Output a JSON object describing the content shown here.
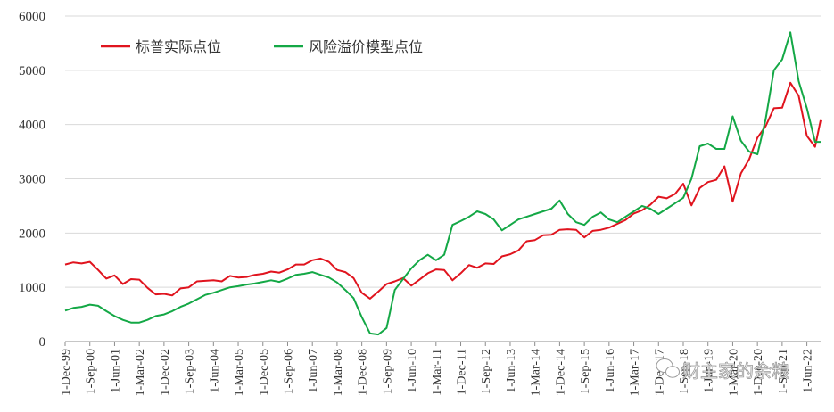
{
  "chart_data": {
    "type": "line",
    "title": "",
    "xlabel": "",
    "ylabel": "",
    "ylim": [
      0,
      6000
    ],
    "y_ticks": [
      0,
      1000,
      2000,
      3000,
      4000,
      5000,
      6000
    ],
    "grid": "horizontal",
    "legend_placement": "top-left",
    "x_tick_labels": [
      "1-Dec-99",
      "1-Sep-00",
      "1-Jun-01",
      "1-Mar-02",
      "1-Dec-02",
      "1-Sep-03",
      "1-Jun-04",
      "1-Mar-05",
      "1-Dec-05",
      "1-Sep-06",
      "1-Jun-07",
      "1-Mar-08",
      "1-Dec-08",
      "1-Sep-09",
      "1-Jun-10",
      "1-Mar-11",
      "1-Dec-11",
      "1-Sep-12",
      "1-Jun-13",
      "1-Mar-14",
      "1-Dec-14",
      "1-Sep-15",
      "1-Jun-16",
      "1-Mar-17",
      "1-Dec-17",
      "1-Sep-18",
      "1-Jun-19",
      "1-Mar-20",
      "1-Dec-20",
      "1-Sep-21",
      "1-Jun-22"
    ],
    "x_start": "1999-12",
    "x_end": "2022-11",
    "series": [
      {
        "name": "标普实际点位",
        "color": "#e0141e",
        "points": [
          [
            "1999-12",
            1420
          ],
          [
            "2000-03",
            1460
          ],
          [
            "2000-06",
            1440
          ],
          [
            "2000-09",
            1470
          ],
          [
            "2000-12",
            1320
          ],
          [
            "2001-03",
            1160
          ],
          [
            "2001-06",
            1220
          ],
          [
            "2001-09",
            1060
          ],
          [
            "2001-12",
            1150
          ],
          [
            "2002-03",
            1140
          ],
          [
            "2002-06",
            990
          ],
          [
            "2002-09",
            870
          ],
          [
            "2002-12",
            880
          ],
          [
            "2003-03",
            850
          ],
          [
            "2003-06",
            980
          ],
          [
            "2003-09",
            1000
          ],
          [
            "2003-12",
            1110
          ],
          [
            "2004-03",
            1120
          ],
          [
            "2004-06",
            1130
          ],
          [
            "2004-09",
            1110
          ],
          [
            "2004-12",
            1210
          ],
          [
            "2005-03",
            1180
          ],
          [
            "2005-06",
            1190
          ],
          [
            "2005-09",
            1230
          ],
          [
            "2005-12",
            1250
          ],
          [
            "2006-03",
            1290
          ],
          [
            "2006-06",
            1270
          ],
          [
            "2006-09",
            1330
          ],
          [
            "2006-12",
            1420
          ],
          [
            "2007-03",
            1420
          ],
          [
            "2007-06",
            1500
          ],
          [
            "2007-09",
            1530
          ],
          [
            "2007-12",
            1470
          ],
          [
            "2008-03",
            1320
          ],
          [
            "2008-06",
            1280
          ],
          [
            "2008-09",
            1170
          ],
          [
            "2008-12",
            900
          ],
          [
            "2009-03",
            790
          ],
          [
            "2009-06",
            920
          ],
          [
            "2009-09",
            1060
          ],
          [
            "2009-12",
            1110
          ],
          [
            "2010-03",
            1170
          ],
          [
            "2010-06",
            1030
          ],
          [
            "2010-09",
            1140
          ],
          [
            "2010-12",
            1260
          ],
          [
            "2011-03",
            1330
          ],
          [
            "2011-06",
            1320
          ],
          [
            "2011-09",
            1130
          ],
          [
            "2011-12",
            1260
          ],
          [
            "2012-03",
            1410
          ],
          [
            "2012-06",
            1360
          ],
          [
            "2012-09",
            1440
          ],
          [
            "2012-12",
            1430
          ],
          [
            "2013-03",
            1570
          ],
          [
            "2013-06",
            1610
          ],
          [
            "2013-09",
            1680
          ],
          [
            "2013-12",
            1850
          ],
          [
            "2014-03",
            1870
          ],
          [
            "2014-06",
            1960
          ],
          [
            "2014-09",
            1970
          ],
          [
            "2014-12",
            2060
          ],
          [
            "2015-03",
            2070
          ],
          [
            "2015-06",
            2060
          ],
          [
            "2015-09",
            1920
          ],
          [
            "2015-12",
            2040
          ],
          [
            "2016-03",
            2060
          ],
          [
            "2016-06",
            2100
          ],
          [
            "2016-09",
            2170
          ],
          [
            "2016-12",
            2240
          ],
          [
            "2017-03",
            2360
          ],
          [
            "2017-06",
            2420
          ],
          [
            "2017-09",
            2520
          ],
          [
            "2017-12",
            2670
          ],
          [
            "2018-03",
            2640
          ],
          [
            "2018-06",
            2720
          ],
          [
            "2018-09",
            2910
          ],
          [
            "2018-12",
            2510
          ],
          [
            "2019-03",
            2830
          ],
          [
            "2019-06",
            2940
          ],
          [
            "2019-09",
            2980
          ],
          [
            "2019-12",
            3230
          ],
          [
            "2020-03",
            2580
          ],
          [
            "2020-06",
            3100
          ],
          [
            "2020-09",
            3360
          ],
          [
            "2020-12",
            3760
          ],
          [
            "2021-03",
            3970
          ],
          [
            "2021-06",
            4300
          ],
          [
            "2021-09",
            4310
          ],
          [
            "2021-12",
            4770
          ],
          [
            "2022-03",
            4530
          ],
          [
            "2022-06",
            3790
          ],
          [
            "2022-09",
            3590
          ],
          [
            "2022-11",
            4080
          ]
        ]
      },
      {
        "name": "风险溢价模型点位",
        "color": "#14a846",
        "points": [
          [
            "1999-12",
            570
          ],
          [
            "2000-03",
            620
          ],
          [
            "2000-06",
            640
          ],
          [
            "2000-09",
            680
          ],
          [
            "2000-12",
            660
          ],
          [
            "2001-03",
            560
          ],
          [
            "2001-06",
            470
          ],
          [
            "2001-09",
            400
          ],
          [
            "2001-12",
            350
          ],
          [
            "2002-03",
            350
          ],
          [
            "2002-06",
            400
          ],
          [
            "2002-09",
            470
          ],
          [
            "2002-12",
            500
          ],
          [
            "2003-03",
            560
          ],
          [
            "2003-06",
            640
          ],
          [
            "2003-09",
            700
          ],
          [
            "2003-12",
            780
          ],
          [
            "2004-03",
            860
          ],
          [
            "2004-06",
            900
          ],
          [
            "2004-09",
            950
          ],
          [
            "2004-12",
            1000
          ],
          [
            "2005-03",
            1020
          ],
          [
            "2005-06",
            1050
          ],
          [
            "2005-09",
            1070
          ],
          [
            "2005-12",
            1100
          ],
          [
            "2006-03",
            1130
          ],
          [
            "2006-06",
            1100
          ],
          [
            "2006-09",
            1160
          ],
          [
            "2006-12",
            1230
          ],
          [
            "2007-03",
            1250
          ],
          [
            "2007-06",
            1280
          ],
          [
            "2007-09",
            1230
          ],
          [
            "2007-12",
            1180
          ],
          [
            "2008-03",
            1090
          ],
          [
            "2008-06",
            950
          ],
          [
            "2008-09",
            800
          ],
          [
            "2008-12",
            450
          ],
          [
            "2009-03",
            150
          ],
          [
            "2009-06",
            130
          ],
          [
            "2009-09",
            250
          ],
          [
            "2009-12",
            950
          ],
          [
            "2010-03",
            1150
          ],
          [
            "2010-06",
            1350
          ],
          [
            "2010-09",
            1500
          ],
          [
            "2010-12",
            1600
          ],
          [
            "2011-03",
            1500
          ],
          [
            "2011-06",
            1600
          ],
          [
            "2011-09",
            2150
          ],
          [
            "2011-12",
            2220
          ],
          [
            "2012-03",
            2300
          ],
          [
            "2012-06",
            2400
          ],
          [
            "2012-09",
            2350
          ],
          [
            "2012-12",
            2250
          ],
          [
            "2013-03",
            2050
          ],
          [
            "2013-06",
            2150
          ],
          [
            "2013-09",
            2250
          ],
          [
            "2013-12",
            2300
          ],
          [
            "2014-03",
            2350
          ],
          [
            "2014-06",
            2400
          ],
          [
            "2014-09",
            2450
          ],
          [
            "2014-12",
            2600
          ],
          [
            "2015-03",
            2350
          ],
          [
            "2015-06",
            2200
          ],
          [
            "2015-09",
            2150
          ],
          [
            "2015-12",
            2300
          ],
          [
            "2016-03",
            2380
          ],
          [
            "2016-06",
            2250
          ],
          [
            "2016-09",
            2200
          ],
          [
            "2016-12",
            2300
          ],
          [
            "2017-03",
            2400
          ],
          [
            "2017-06",
            2500
          ],
          [
            "2017-09",
            2450
          ],
          [
            "2017-12",
            2350
          ],
          [
            "2018-03",
            2450
          ],
          [
            "2018-06",
            2550
          ],
          [
            "2018-09",
            2650
          ],
          [
            "2018-12",
            3000
          ],
          [
            "2019-03",
            3600
          ],
          [
            "2019-06",
            3650
          ],
          [
            "2019-09",
            3550
          ],
          [
            "2019-12",
            3550
          ],
          [
            "2020-03",
            4150
          ],
          [
            "2020-06",
            3700
          ],
          [
            "2020-09",
            3500
          ],
          [
            "2020-12",
            3450
          ],
          [
            "2021-03",
            4100
          ],
          [
            "2021-06",
            5000
          ],
          [
            "2021-09",
            5200
          ],
          [
            "2021-12",
            5700
          ],
          [
            "2022-03",
            4800
          ],
          [
            "2022-06",
            4300
          ],
          [
            "2022-09",
            3680
          ],
          [
            "2022-11",
            3680
          ]
        ]
      }
    ]
  },
  "watermark": {
    "text": "财主家的余粮",
    "icon": "wechat-icon"
  }
}
